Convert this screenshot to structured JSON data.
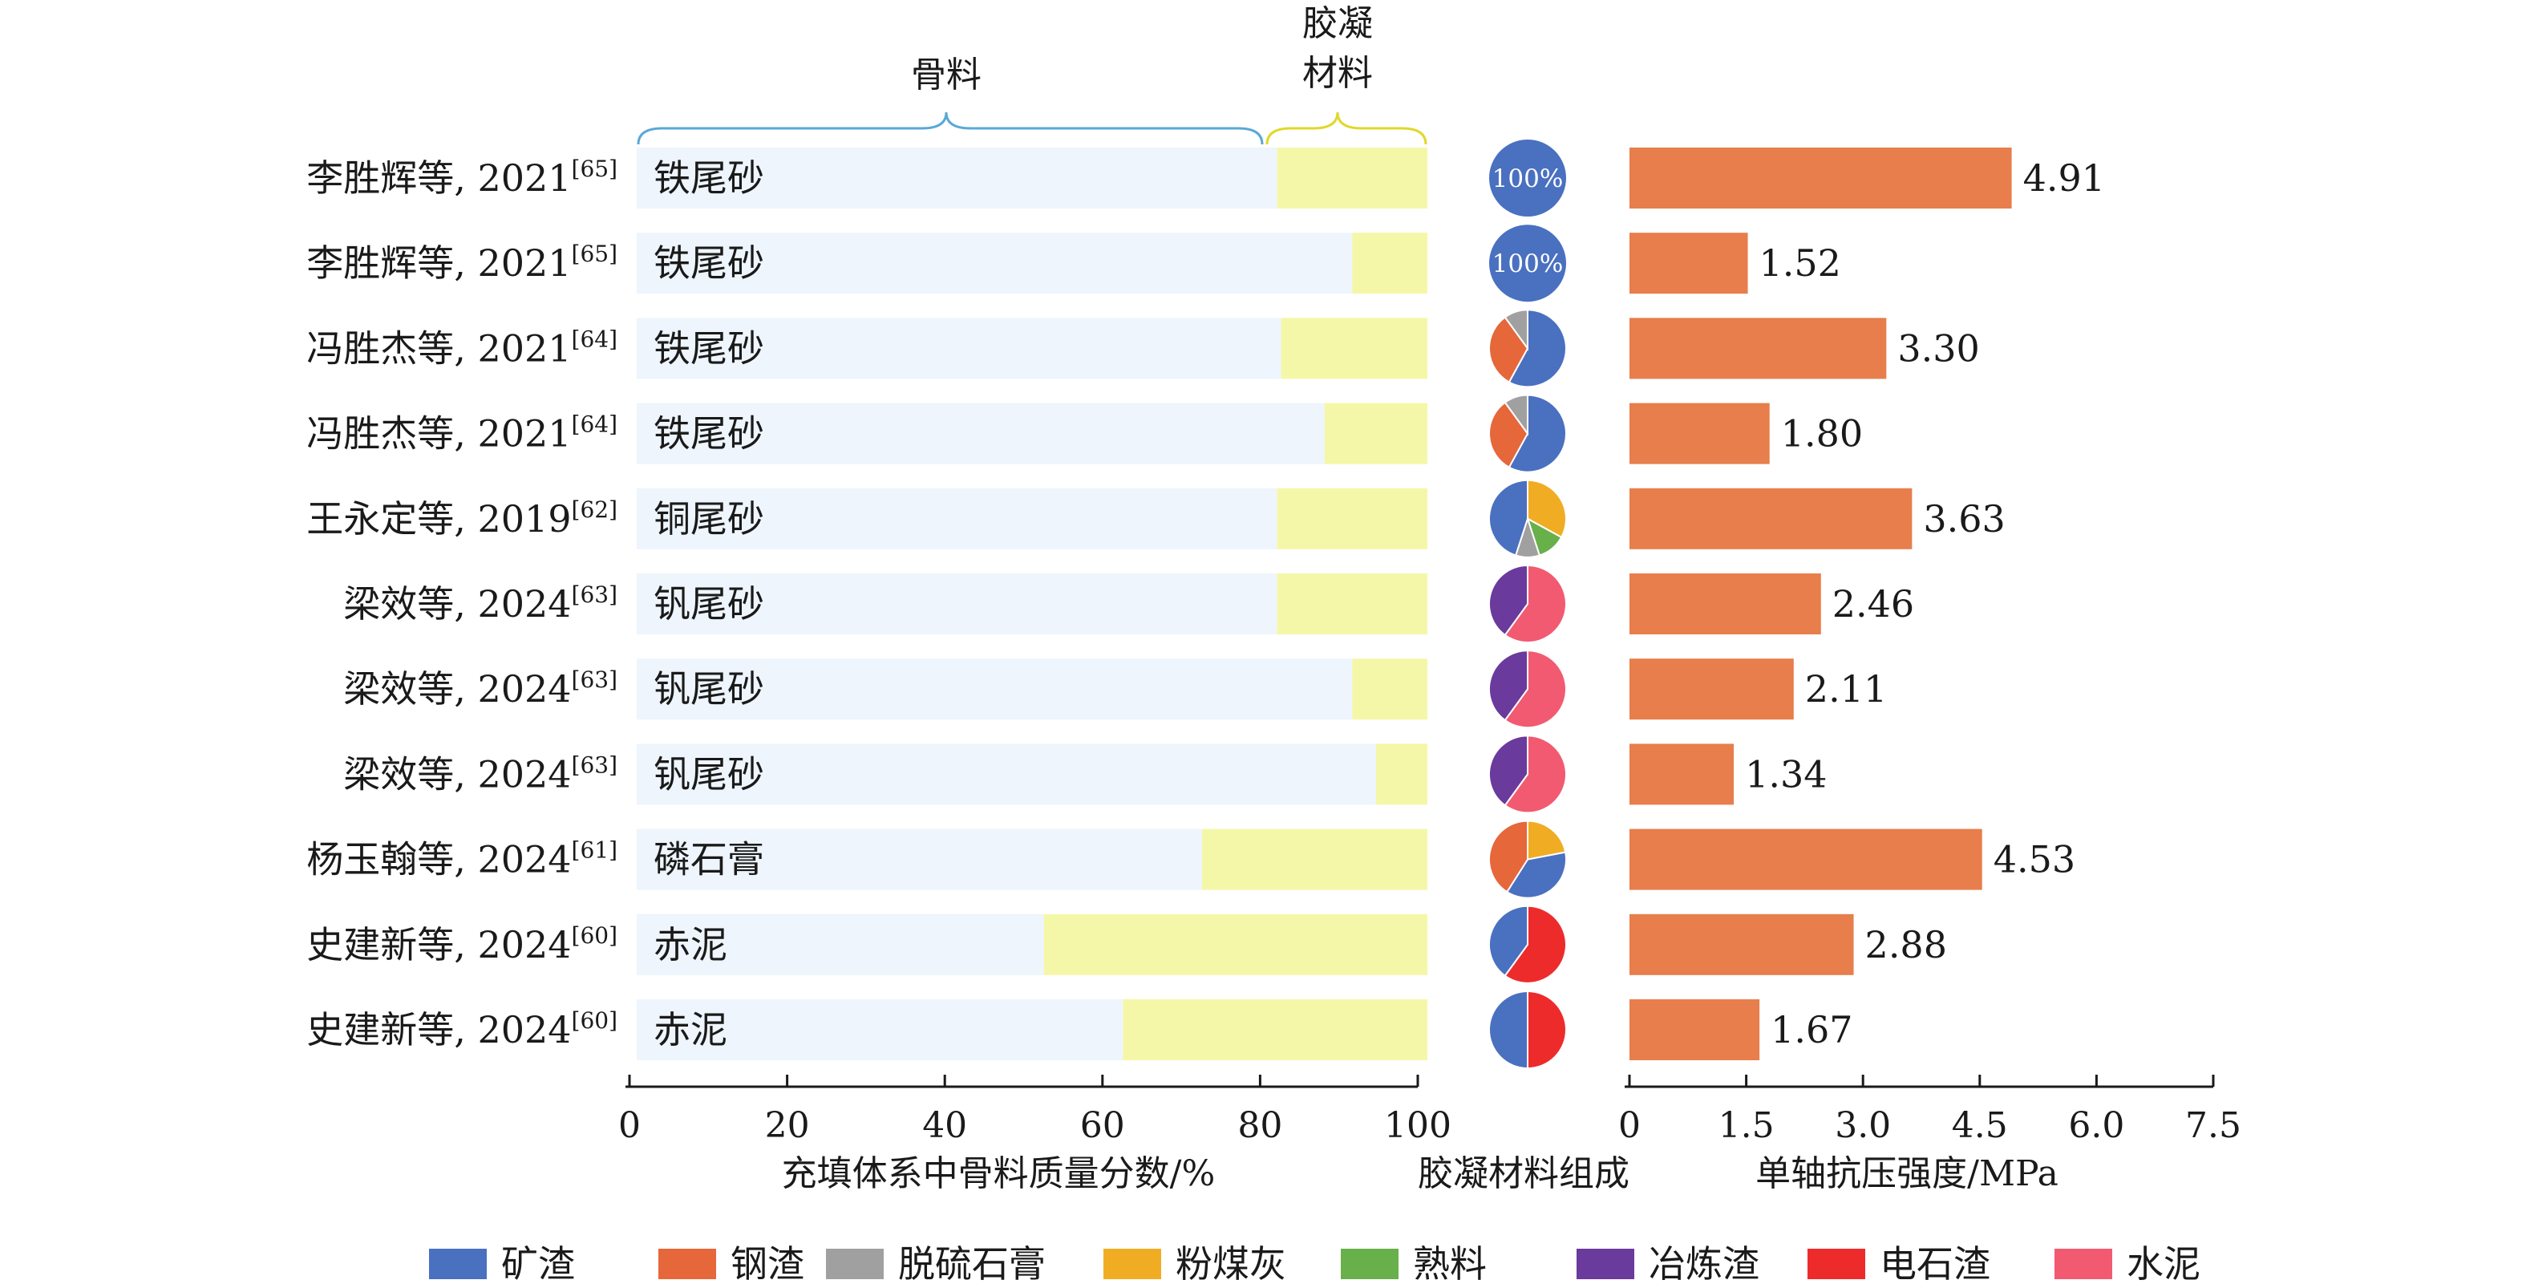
{
  "chart_data": [
    {
      "type": "bar",
      "subtype": "stacked-horizontal",
      "xlabel": "充填体系中骨料质量分数/%",
      "xlim": [
        0,
        100
      ],
      "xticks": [
        0,
        20,
        40,
        60,
        80,
        100
      ],
      "group_labels": {
        "aggregate": "骨料",
        "binder_line1": "胶凝",
        "binder_line2": "材料"
      },
      "series_colors": {
        "aggregate": "#eef5fc",
        "binder": "#f5f7a8"
      },
      "rows": [
        {
          "source": "李胜辉等, 2021",
          "ref": "[65]",
          "aggregate": "铁尾砂",
          "value": 81
        },
        {
          "source": "李胜辉等, 2021",
          "ref": "[65]",
          "aggregate": "铁尾砂",
          "value": 90.5
        },
        {
          "source": "冯胜杰等, 2021",
          "ref": "[64]",
          "aggregate": "铁尾砂",
          "value": 81.5
        },
        {
          "source": "冯胜杰等, 2021",
          "ref": "[64]",
          "aggregate": "铁尾砂",
          "value": 87
        },
        {
          "source": "王永定等, 2019",
          "ref": "[62]",
          "aggregate": "铜尾砂",
          "value": 81
        },
        {
          "source": "梁效等, 2024",
          "ref": "[63]",
          "aggregate": "钒尾砂",
          "value": 81
        },
        {
          "source": "梁效等, 2024",
          "ref": "[63]",
          "aggregate": "钒尾砂",
          "value": 90.5
        },
        {
          "source": "梁效等, 2024",
          "ref": "[63]",
          "aggregate": "钒尾砂",
          "value": 93.5
        },
        {
          "source": "杨玉翰等, 2024",
          "ref": "[61]",
          "aggregate": "磷石膏",
          "value": 71.5
        },
        {
          "source": "史建新等, 2024",
          "ref": "[60]",
          "aggregate": "赤泥",
          "value": 51.5
        },
        {
          "source": "史建新等, 2024",
          "ref": "[60]",
          "aggregate": "赤泥",
          "value": 61.5
        }
      ]
    },
    {
      "type": "pie",
      "xlabel": "胶凝材料组成",
      "legend_position": "bottom",
      "components": [
        {
          "name": "矿渣",
          "color": "#4a70c0"
        },
        {
          "name": "钢渣",
          "color": "#e6673a"
        },
        {
          "name": "脱硫石膏",
          "color": "#a0a0a0"
        },
        {
          "name": "粉煤灰",
          "color": "#f0ad24"
        },
        {
          "name": "熟料",
          "color": "#68b04a"
        },
        {
          "name": "冶炼渣",
          "color": "#6a3a9c"
        },
        {
          "name": "电石渣",
          "color": "#ee2b2b"
        },
        {
          "name": "水泥",
          "color": "#f25a72"
        }
      ],
      "pies": [
        {
          "label": "100%",
          "slices": [
            {
              "component": "矿渣",
              "value": 100
            }
          ]
        },
        {
          "label": "100%",
          "slices": [
            {
              "component": "矿渣",
              "value": 100
            }
          ]
        },
        {
          "slices": [
            {
              "component": "矿渣",
              "value": 58
            },
            {
              "component": "钢渣",
              "value": 32
            },
            {
              "component": "脱硫石膏",
              "value": 10
            }
          ]
        },
        {
          "slices": [
            {
              "component": "矿渣",
              "value": 58
            },
            {
              "component": "钢渣",
              "value": 32
            },
            {
              "component": "脱硫石膏",
              "value": 10
            }
          ]
        },
        {
          "slices": [
            {
              "component": "粉煤灰",
              "value": 33
            },
            {
              "component": "熟料",
              "value": 12
            },
            {
              "component": "脱硫石膏",
              "value": 10
            },
            {
              "component": "矿渣",
              "value": 45
            }
          ]
        },
        {
          "slices": [
            {
              "component": "水泥",
              "value": 60
            },
            {
              "component": "冶炼渣",
              "value": 40
            }
          ]
        },
        {
          "slices": [
            {
              "component": "水泥",
              "value": 60
            },
            {
              "component": "冶炼渣",
              "value": 40
            }
          ]
        },
        {
          "slices": [
            {
              "component": "水泥",
              "value": 60
            },
            {
              "component": "冶炼渣",
              "value": 40
            }
          ]
        },
        {
          "slices": [
            {
              "component": "粉煤灰",
              "value": 22
            },
            {
              "component": "矿渣",
              "value": 37
            },
            {
              "component": "钢渣",
              "value": 41
            }
          ]
        },
        {
          "slices": [
            {
              "component": "电石渣",
              "value": 60
            },
            {
              "component": "矿渣",
              "value": 40
            }
          ]
        },
        {
          "slices": [
            {
              "component": "电石渣",
              "value": 50
            },
            {
              "component": "矿渣",
              "value": 50
            }
          ]
        }
      ]
    },
    {
      "type": "bar",
      "subtype": "horizontal",
      "xlabel": "单轴抗压强度/MPa",
      "xlim": [
        0,
        7.5
      ],
      "xticks": [
        "0",
        "1.5",
        "3.0",
        "4.5",
        "6.0",
        "7.5"
      ],
      "color": "#e77e4c",
      "values": [
        4.91,
        1.52,
        3.3,
        1.8,
        3.63,
        2.46,
        2.11,
        1.34,
        4.53,
        2.88,
        1.67
      ],
      "value_labels": [
        "4.91",
        "1.52",
        "3.30",
        "1.80",
        "3.63",
        "2.46",
        "2.11",
        "1.34",
        "4.53",
        "2.88",
        "1.67"
      ]
    }
  ]
}
